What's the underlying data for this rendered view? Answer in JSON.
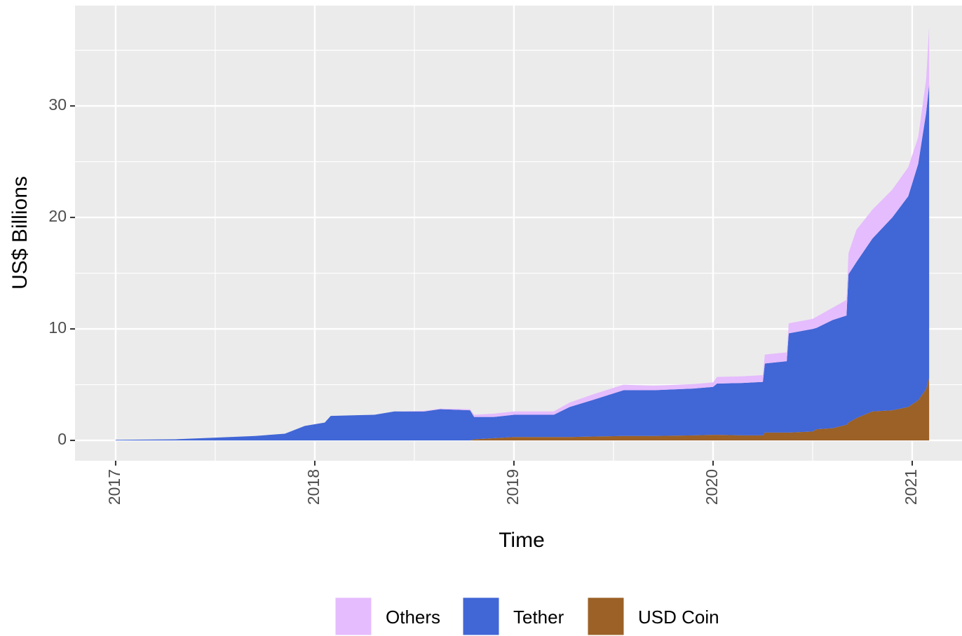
{
  "chart_data": {
    "type": "area",
    "stacked": true,
    "x_label": "Time",
    "y_label": "US$ Billions",
    "x": [
      2017.0,
      2017.3,
      2017.5,
      2017.7,
      2017.85,
      2017.95,
      2018.05,
      2018.08,
      2018.3,
      2018.4,
      2018.55,
      2018.63,
      2018.78,
      2018.8,
      2018.9,
      2019.0,
      2019.2,
      2019.28,
      2019.4,
      2019.55,
      2019.7,
      2019.9,
      2020.0,
      2020.02,
      2020.15,
      2020.25,
      2020.26,
      2020.37,
      2020.38,
      2020.5,
      2020.52,
      2020.6,
      2020.67,
      2020.68,
      2020.72,
      2020.8,
      2020.9,
      2020.98,
      2021.03,
      2021.07,
      2021.085
    ],
    "series": [
      {
        "name": "Others",
        "color": "#e5bcfd",
        "values": [
          0,
          0,
          0,
          0,
          0,
          0,
          0,
          0,
          0,
          0,
          0.05,
          0.05,
          0.1,
          0.2,
          0.3,
          0.3,
          0.3,
          0.4,
          0.5,
          0.5,
          0.4,
          0.4,
          0.4,
          0.6,
          0.6,
          0.6,
          0.8,
          0.8,
          0.9,
          0.9,
          1.0,
          1.1,
          1.4,
          1.9,
          2.9,
          2.6,
          2.5,
          2.6,
          2.4,
          3.0,
          5.2
        ]
      },
      {
        "name": "Tether",
        "color": "#4166d6",
        "values": [
          0.05,
          0.1,
          0.25,
          0.4,
          0.6,
          1.3,
          1.6,
          2.2,
          2.3,
          2.6,
          2.6,
          2.8,
          2.7,
          2.0,
          1.9,
          2.0,
          2.0,
          2.7,
          3.3,
          4.1,
          4.1,
          4.2,
          4.3,
          4.6,
          4.7,
          4.8,
          6.2,
          6.4,
          8.9,
          9.2,
          9.1,
          9.7,
          9.8,
          13.3,
          14.0,
          15.5,
          17.3,
          18.9,
          21.2,
          24.8,
          26.3
        ]
      },
      {
        "name": "USD Coin",
        "color": "#9b6126",
        "values": [
          0,
          0,
          0,
          0,
          0,
          0,
          0,
          0,
          0,
          0,
          0,
          0,
          0,
          0.1,
          0.2,
          0.3,
          0.3,
          0.3,
          0.35,
          0.4,
          0.4,
          0.45,
          0.5,
          0.5,
          0.45,
          0.45,
          0.7,
          0.7,
          0.7,
          0.8,
          1.0,
          1.1,
          1.4,
          1.6,
          2.0,
          2.6,
          2.7,
          3.0,
          3.6,
          4.6,
          5.6
        ]
      }
    ],
    "xlim": [
      2016.796,
      2021.25
    ],
    "xticks": [
      2017,
      2018,
      2019,
      2020,
      2021
    ],
    "ylim": [
      -1.82,
      39
    ],
    "yticks": [
      0,
      10,
      20,
      30
    ],
    "grid": true,
    "legend": "bottom"
  }
}
